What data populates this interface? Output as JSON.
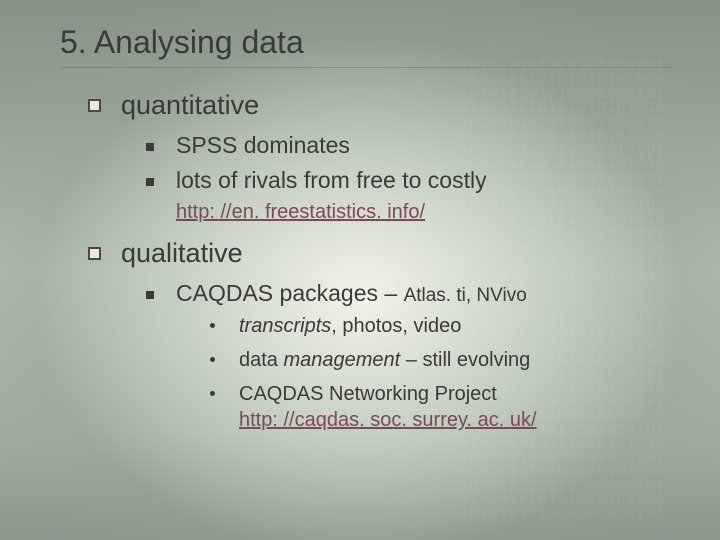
{
  "slide": {
    "title": "5.  Analysing data",
    "background": {
      "base_top": "#8a968a",
      "base_mid": "#b8c4b8",
      "base_bottom": "#909a90",
      "vignette_center": "#f5f5eb",
      "binary_overlay_color": "rgba(255,255,255,0.06)"
    },
    "colors": {
      "text": "#3a3a3a",
      "link": "#7a4a5a",
      "l1_bullet_border": "#4a4a4a",
      "l1_bullet_fill": "#edeada",
      "l2_bullet": "#3a3a3a",
      "l3_bullet": "#3a3a3a"
    },
    "fontsize": {
      "title": 32,
      "l1": 27,
      "l2": 23,
      "l2_link": 20,
      "l3": 20,
      "caqdas_sub": 19
    },
    "items": [
      {
        "label": "quantitative",
        "children": [
          {
            "text": "SPSS dominates"
          },
          {
            "text": "lots of rivals from free to costly"
          }
        ],
        "link": "http: //en. freestatistics. info/"
      },
      {
        "label": "qualitative",
        "children": [
          {
            "text_main": "CAQDAS packages – ",
            "text_sub": "Atlas. ti, NVivo",
            "subitems": [
              {
                "pre": "transcripts",
                "post": ", photos, video"
              },
              {
                "pre2": "data ",
                "italic": "management",
                "post2": " – still evolving"
              },
              {
                "text": "CAQDAS Networking Project",
                "link": "http: //caqdas. soc. surrey. ac. uk/"
              }
            ]
          }
        ]
      }
    ]
  }
}
